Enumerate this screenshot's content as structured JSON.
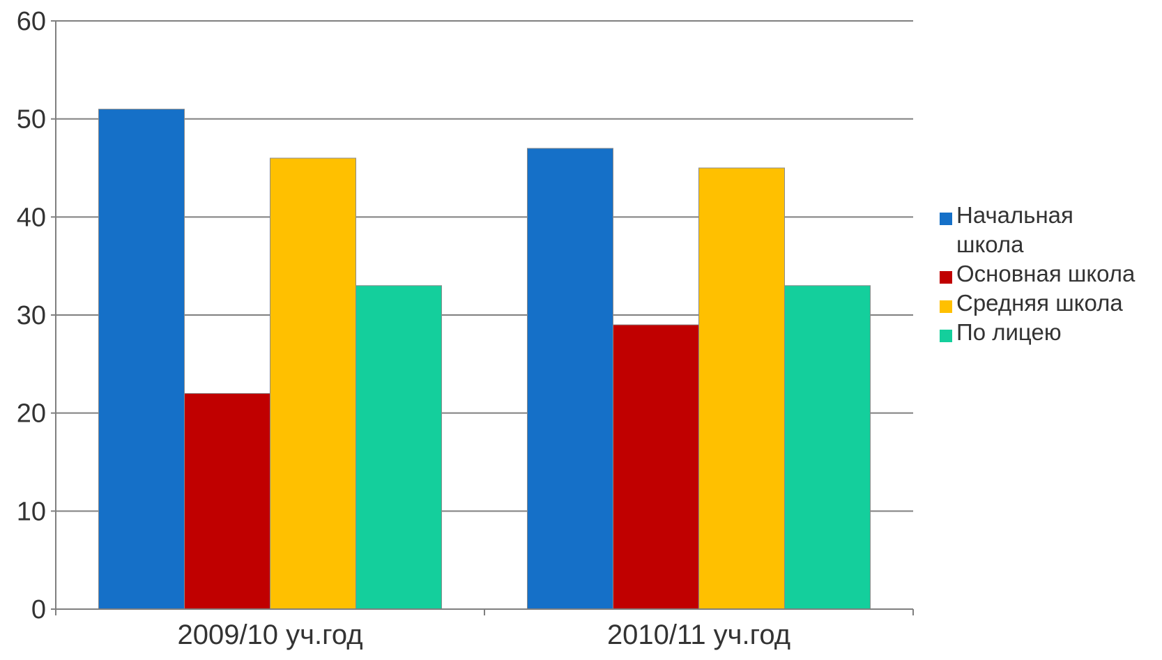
{
  "chart_data": {
    "type": "bar",
    "categories": [
      "2009/10 уч.год",
      "2010/11 уч.год"
    ],
    "series": [
      {
        "name": "Начальная школа",
        "values": [
          51,
          47
        ],
        "color": "#1570c8"
      },
      {
        "name": "Основная школа",
        "values": [
          22,
          29
        ],
        "color": "#c00000"
      },
      {
        "name": "Средняя школа",
        "values": [
          46,
          45
        ],
        "color": "#ffc000"
      },
      {
        "name": "По лицею",
        "values": [
          33,
          33
        ],
        "color": "#14cf9c"
      }
    ],
    "ylim": [
      0,
      60
    ],
    "yticks": [
      "0",
      "10",
      "20",
      "30",
      "40",
      "50",
      "60"
    ],
    "grid": true,
    "legend": "right",
    "title": "",
    "xlabel": "",
    "ylabel": ""
  }
}
